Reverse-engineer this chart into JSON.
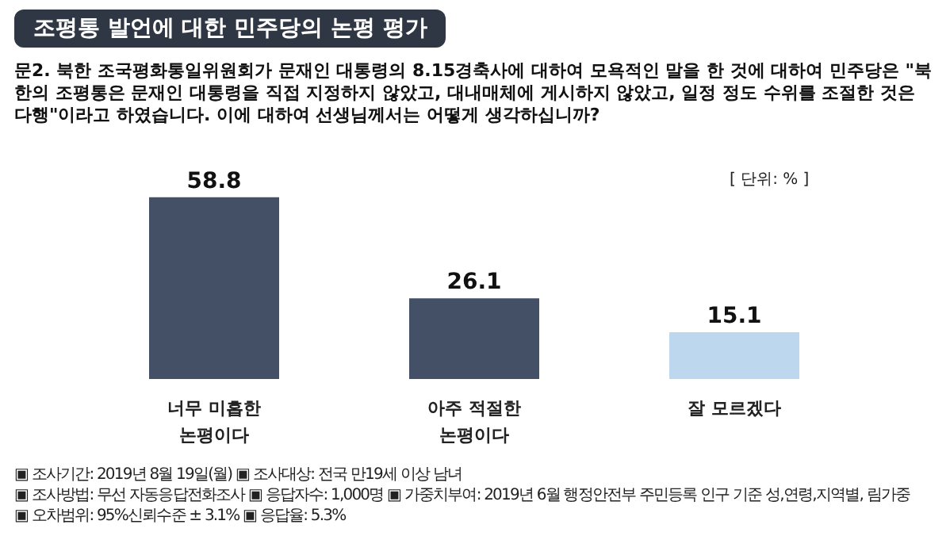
{
  "chart_data": {
    "type": "bar",
    "title": "조평통 발언에 대한 민주당의 논평 평가",
    "subtitle": "문2. 북한 조국평화통일위원회가 문재인 대통령의 8.15경축사에 대하여 모욕적인 말을 한 것에 대하여 민주당은 \"북한의 조평통은 문재인 대통령을 직접 지정하지 않았고, 대내매체에 게시하지 않았고, 일정 정도 수위를 조절한 것은 다행\"이라고 하였습니다. 이에 대하여 선생님께서는 어떻게 생각하십니까?",
    "categories": [
      "너무 미흡한\n논평이다",
      "아주 적절한\n논평이다",
      "잘 모르겠다"
    ],
    "values": [
      58.8,
      26.1,
      15.1
    ],
    "colors": [
      "#435066",
      "#435066",
      "#bdd7ee"
    ],
    "ylim": [
      0,
      60
    ],
    "data_labels": true,
    "tick_labels": "x",
    "annotations": [
      "[ 단위: % ]",
      "▣ 조사기간: 2019년 8월 19일(월) ▣ 조사대상: 전국 만19세 이상 남녀",
      "▣ 조사방법: 무선 자동응답전화조사 ▣ 응답자수: 1,000명 ▣ 가중치부여: 2019년 6월 행정안전부 주민등록 인구 기준 성,연령,지역별, 림가중",
      "▣ 오차범위: 95%신뢰수준 ± 3.1% ▣ 응답율: 5.3%"
    ]
  }
}
